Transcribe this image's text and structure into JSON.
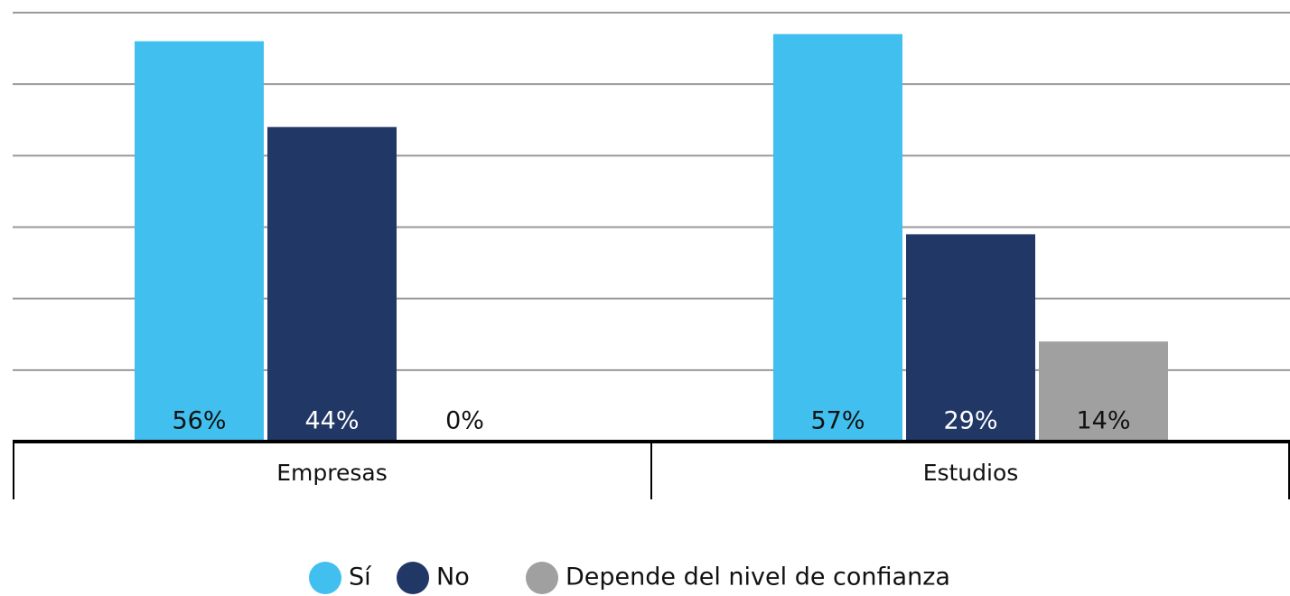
{
  "chart_data": {
    "type": "bar",
    "categories": [
      "Empresas",
      "Estudios"
    ],
    "series": [
      {
        "name": "Sí",
        "color": "#41bfef",
        "values": [
          56,
          57
        ],
        "value_labels": [
          "56%",
          "57%"
        ]
      },
      {
        "name": "No",
        "color": "#213766",
        "values": [
          44,
          29
        ],
        "value_labels": [
          "44%",
          "29%"
        ]
      },
      {
        "name": "Depende del nivel de confianza",
        "color": "#a0a0a0",
        "values": [
          0,
          14
        ],
        "value_labels": [
          "0%",
          "14%"
        ]
      }
    ],
    "ylim": [
      0,
      60
    ],
    "yticks": [
      0,
      10,
      20,
      30,
      40,
      50,
      60
    ],
    "grid": true,
    "legend": "bottom"
  }
}
